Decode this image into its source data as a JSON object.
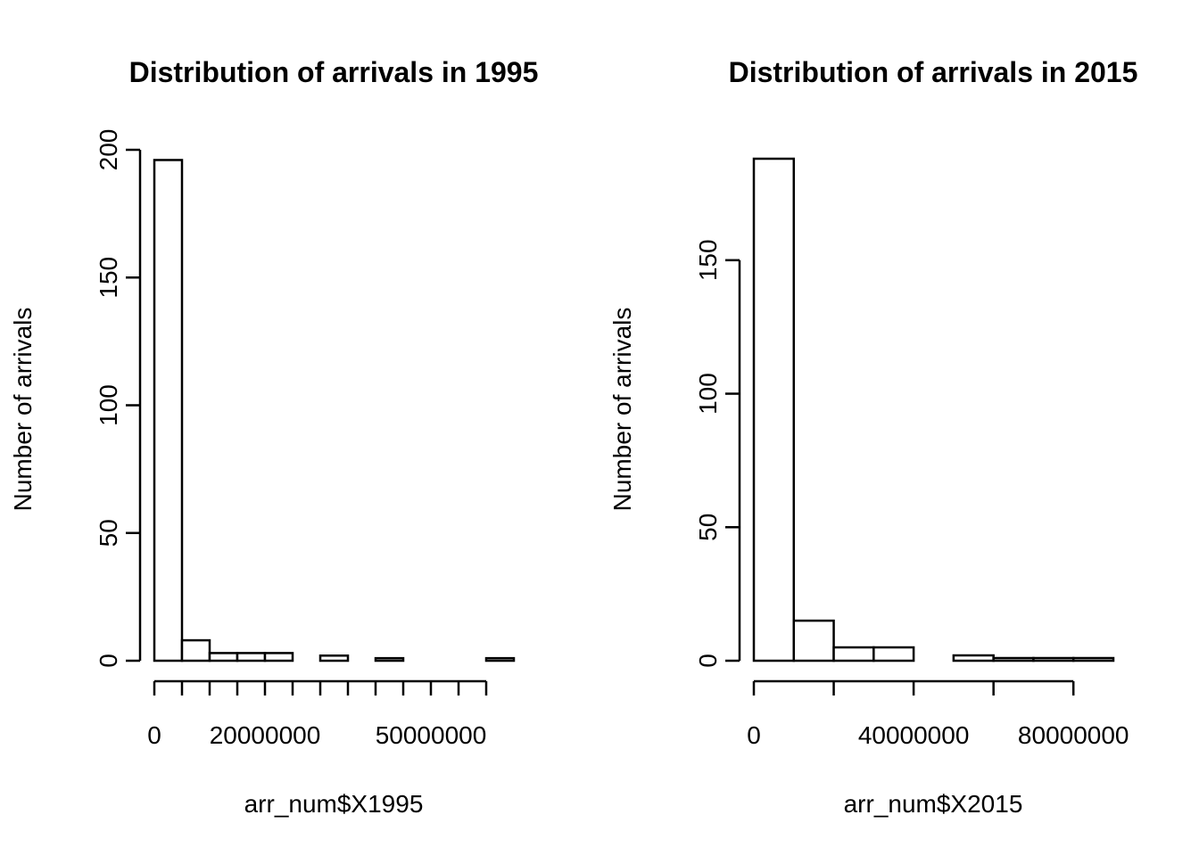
{
  "chart_data": [
    {
      "type": "bar",
      "title": "Distribution of arrivals in 1995",
      "xlabel": "arr_num$X1995",
      "ylabel": "Number of arrivals",
      "bin_edges": [
        0,
        5000000,
        10000000,
        15000000,
        20000000,
        25000000,
        30000000,
        35000000,
        40000000,
        45000000,
        50000000,
        55000000,
        60000000,
        65000000
      ],
      "values": [
        196,
        8,
        3,
        3,
        3,
        0,
        2,
        0,
        1,
        0,
        0,
        0,
        1
      ],
      "x_ticks": [
        0,
        5000000,
        10000000,
        15000000,
        20000000,
        25000000,
        30000000,
        35000000,
        40000000,
        45000000,
        50000000,
        55000000,
        60000000
      ],
      "x_tick_labels": [
        {
          "value": 0,
          "text": "0"
        },
        {
          "value": 20000000,
          "text": "20000000"
        },
        {
          "value": 50000000,
          "text": "50000000"
        }
      ],
      "y_ticks": [
        0,
        50,
        100,
        150,
        200
      ],
      "y_tick_labels": [
        "0",
        "50",
        "100",
        "150",
        "200"
      ],
      "xlim": [
        -500000,
        65000000
      ],
      "ylim": [
        0,
        200
      ],
      "grid": false
    },
    {
      "type": "bar",
      "title": "Distribution of arrivals in 2015",
      "xlabel": "arr_num$X2015",
      "ylabel": "Number of arrivals",
      "bin_edges": [
        0,
        10000000,
        20000000,
        30000000,
        40000000,
        50000000,
        60000000,
        70000000,
        80000000,
        90000000
      ],
      "values": [
        188,
        15,
        5,
        5,
        0,
        2,
        1,
        1,
        1
      ],
      "x_ticks": [
        0,
        20000000,
        40000000,
        60000000,
        80000000
      ],
      "x_tick_labels": [
        {
          "value": 0,
          "text": "0"
        },
        {
          "value": 40000000,
          "text": "40000000"
        },
        {
          "value": 80000000,
          "text": "80000000"
        }
      ],
      "y_ticks": [
        0,
        50,
        100,
        150
      ],
      "y_tick_labels": [
        "0",
        "50",
        "100",
        "150"
      ],
      "xlim": [
        0,
        90000000
      ],
      "ylim": [
        0,
        188
      ],
      "grid": false
    }
  ]
}
